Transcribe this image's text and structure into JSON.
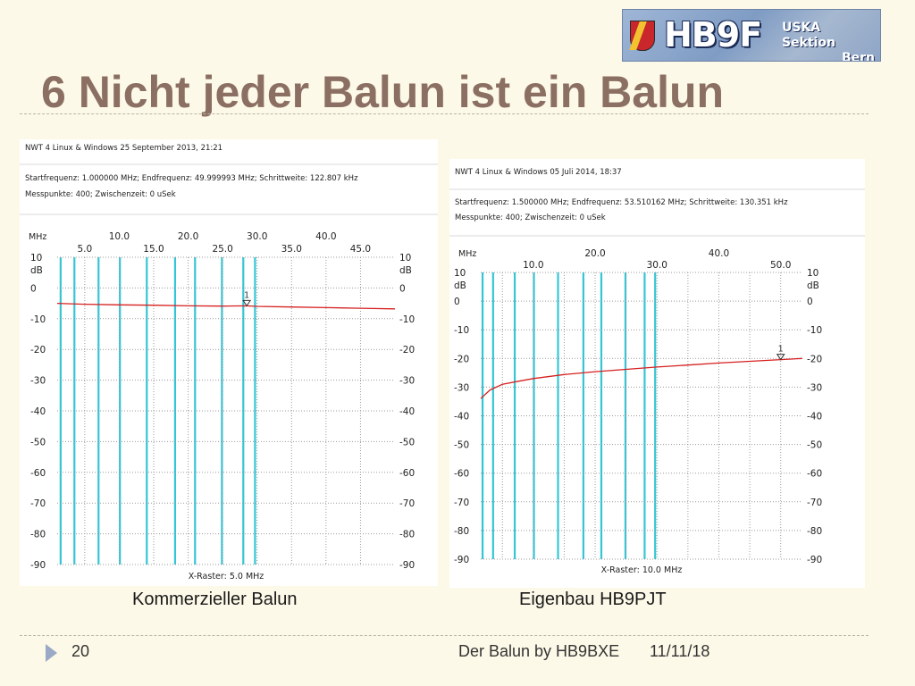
{
  "slide": {
    "title": "6 Nicht jeder Balun ist ein Balun",
    "logo": {
      "callsign": "HB9F",
      "section_line1": "USKA Sektion",
      "section_line2": "Bern",
      "icon": "bern-bear-shield-icon"
    },
    "footer": {
      "page_number": "20",
      "center_text": "Der Balun by HB9BXE",
      "date": "11/11/18"
    }
  },
  "captions": {
    "left": "Kommerzieller Balun",
    "right": "Eigenbau HB9PJT"
  },
  "colors": {
    "background": "#fdf9e8",
    "title": "#8b6f62",
    "trace": "#d62020",
    "markers": "#35c6d6",
    "grid": "#9a9a9a"
  },
  "chart_data": [
    {
      "type": "line",
      "header": {
        "line1": "NWT 4 Linux & Windows  25 September 2013, 21:21",
        "line2": "Startfrequenz: 1.000000 MHz; Endfrequenz: 49.999993 MHz; Schrittweite: 122.807 kHz",
        "line3": "Messpunkte:  400; Zwischenzeit:    0 uSek"
      },
      "x_unit_label": "MHz",
      "xlim": [
        1.0,
        49.999993
      ],
      "x_ticks_top": [
        10.0,
        20.0,
        30.0,
        40.0
      ],
      "x_ticks_bottom": [
        5.0,
        15.0,
        25.0,
        35.0,
        45.0
      ],
      "x_tick_labels_top": [
        "10.0",
        "20.0",
        "30.0",
        "40.0"
      ],
      "x_tick_labels_bottom": [
        "5.0",
        "15.0",
        "25.0",
        "35.0",
        "45.0"
      ],
      "ylim": [
        -90,
        10
      ],
      "y_unit_label": "dB",
      "y_ticks": [
        10,
        0,
        -10,
        -20,
        -30,
        -40,
        -50,
        -60,
        -70,
        -80,
        -90
      ],
      "y_tick_labels": [
        "10",
        "0",
        "-10",
        "-20",
        "-30",
        "-40",
        "-50",
        "-60",
        "-70",
        "-80",
        "-90"
      ],
      "x_raster_label": "X-Raster: 5.0 MHz",
      "marker_lines_mhz": [
        1.5,
        3.5,
        7.0,
        10.1,
        14.0,
        18.1,
        21.0,
        24.9,
        28.0,
        29.7
      ],
      "series": [
        {
          "x": [
            1,
            5,
            10,
            15,
            20,
            25,
            28.5,
            30,
            35,
            40,
            45,
            50
          ],
          "y": [
            -5.0,
            -5.3,
            -5.5,
            -5.6,
            -5.8,
            -5.9,
            -5.8,
            -6.0,
            -6.2,
            -6.4,
            -6.6,
            -6.8
          ]
        }
      ],
      "marker": {
        "label": "1",
        "x": 28.5,
        "y": -5.8
      },
      "grid": true
    },
    {
      "type": "line",
      "header": {
        "line1": "NWT 4 Linux & Windows  05 Juli 2014, 18:37",
        "line2": "Startfrequenz: 1.500000 MHz; Endfrequenz: 53.510162 MHz; Schrittweite: 130.351 kHz",
        "line3": "Messpunkte:  400; Zwischenzeit:    0 uSek"
      },
      "x_unit_label": "MHz",
      "xlim": [
        1.5,
        53.510162
      ],
      "x_ticks_top": [
        20.0,
        40.0
      ],
      "x_ticks_bottom": [
        10.0,
        30.0,
        50.0
      ],
      "x_tick_labels_top": [
        "20.0",
        "40.0"
      ],
      "x_tick_labels_bottom": [
        "10.0",
        "30.0",
        "50.0"
      ],
      "ylim": [
        -90,
        10
      ],
      "y_unit_label": "dB",
      "y_ticks": [
        10,
        0,
        -10,
        -20,
        -30,
        -40,
        -50,
        -60,
        -70,
        -80,
        -90
      ],
      "y_tick_labels": [
        "10",
        "0",
        "-10",
        "-20",
        "-30",
        "-40",
        "-50",
        "-60",
        "-70",
        "-80",
        "-90"
      ],
      "x_raster_label": "X-Raster: 10.0 MHz",
      "marker_lines_mhz": [
        1.8,
        3.5,
        7.0,
        10.1,
        14.0,
        18.1,
        21.0,
        24.9,
        28.0,
        29.7
      ],
      "series": [
        {
          "x": [
            1.5,
            3,
            5,
            8,
            10,
            15,
            20,
            25,
            30,
            35,
            40,
            45,
            50,
            53.5
          ],
          "y": [
            -34.0,
            -31.0,
            -29.0,
            -27.8,
            -27.0,
            -25.6,
            -24.6,
            -23.8,
            -23.0,
            -22.3,
            -21.6,
            -21.0,
            -20.4,
            -20.0
          ]
        }
      ],
      "marker": {
        "label": "1",
        "x": 50.0,
        "y": -20.4
      },
      "grid": true
    }
  ]
}
